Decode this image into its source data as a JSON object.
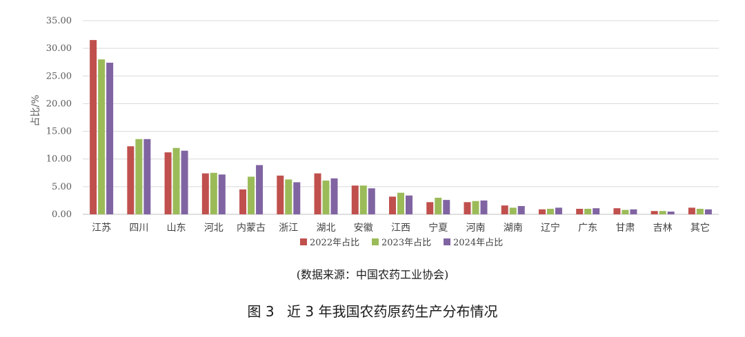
{
  "chart_data": {
    "type": "bar",
    "ylabel": "占比/%",
    "ylim": [
      0,
      35
    ],
    "yticks": [
      "0.00",
      "5.00",
      "10.00",
      "15.00",
      "20.00",
      "25.00",
      "30.00",
      "35.00"
    ],
    "grid": true,
    "legend_position": "bottom",
    "categories": [
      "江苏",
      "四川",
      "山东",
      "河北",
      "内蒙古",
      "浙江",
      "湖北",
      "安徽",
      "江西",
      "宁夏",
      "河南",
      "湖南",
      "辽宁",
      "广东",
      "甘肃",
      "吉林",
      "其它"
    ],
    "series": [
      {
        "name": "2022年占比",
        "color": "#c0504d",
        "values": [
          31.5,
          12.3,
          11.2,
          7.4,
          4.5,
          7.0,
          7.4,
          5.2,
          3.2,
          2.2,
          2.2,
          1.6,
          0.9,
          1.0,
          1.1,
          0.6,
          1.2
        ]
      },
      {
        "name": "2023年占比",
        "color": "#9bbb59",
        "values": [
          28.0,
          13.6,
          12.0,
          7.5,
          6.8,
          6.3,
          6.1,
          5.2,
          3.9,
          3.0,
          2.4,
          1.2,
          1.0,
          1.0,
          0.8,
          0.6,
          1.0
        ]
      },
      {
        "name": "2024年占比",
        "color": "#8064a2",
        "values": [
          27.4,
          13.6,
          11.5,
          7.2,
          8.9,
          5.8,
          6.5,
          4.7,
          3.4,
          2.6,
          2.5,
          1.5,
          1.2,
          1.1,
          0.9,
          0.5,
          0.9
        ]
      }
    ]
  },
  "source_note": "(数据来源：中国农药工业协会)",
  "caption": {
    "figure_number": "图 3",
    "title": "近 3 年我国农药原药生产分布情况"
  }
}
